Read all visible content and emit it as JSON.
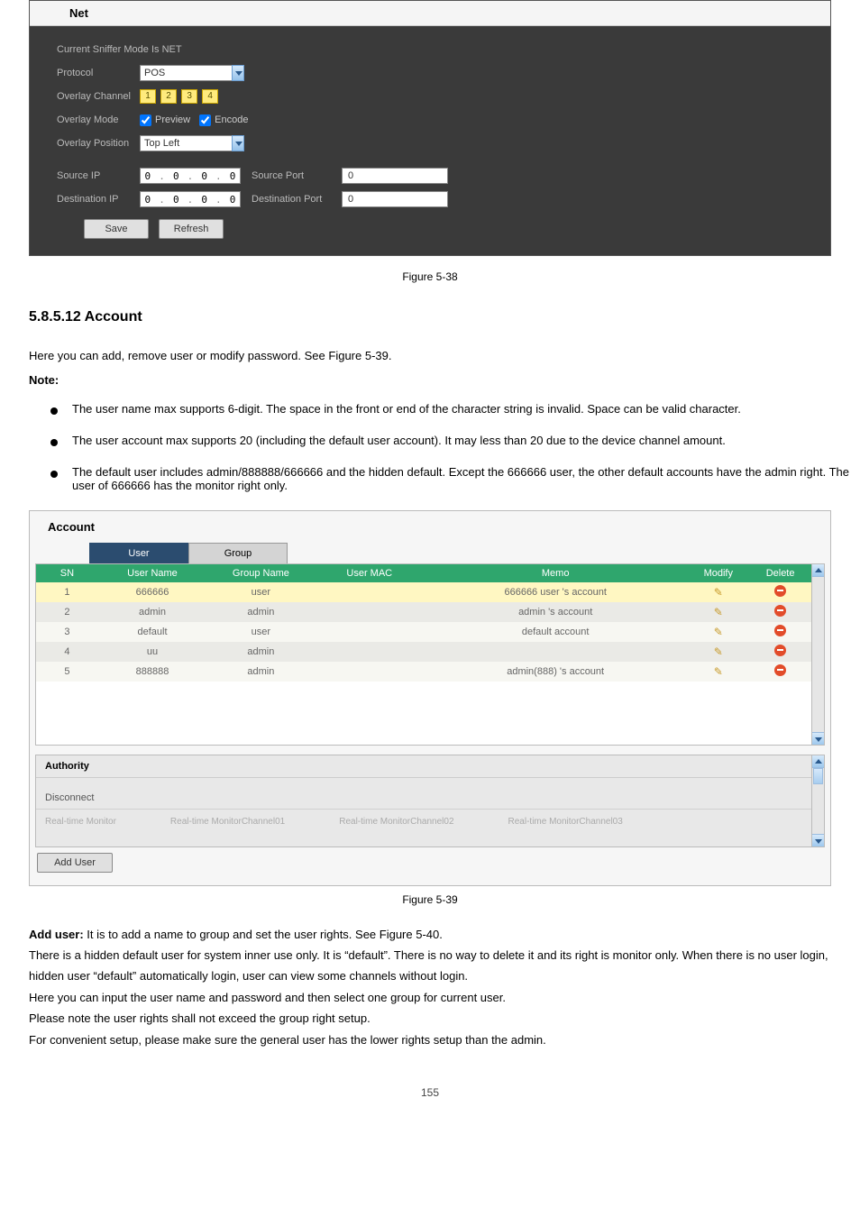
{
  "net": {
    "title": "Net",
    "mode_text": "Current Sniffer Mode Is NET",
    "labels": {
      "protocol": "Protocol",
      "overlay_channel": "Overlay Channel",
      "overlay_mode": "Overlay Mode",
      "overlay_position": "Overlay Position",
      "source_ip": "Source IP",
      "dest_ip": "Destination IP",
      "source_port": "Source Port",
      "dest_port": "Destination Port"
    },
    "protocol_value": "POS",
    "channels": [
      "1",
      "2",
      "3",
      "4"
    ],
    "overlay_preview": "Preview",
    "overlay_encode": "Encode",
    "overlay_position_value": "Top Left",
    "src_ip": [
      "0",
      "0",
      "0",
      "0"
    ],
    "dst_ip": [
      "0",
      "0",
      "0",
      "0"
    ],
    "src_port": "0",
    "dst_port": "0",
    "save": "Save",
    "refresh": "Refresh"
  },
  "caption1": "Figure 5-38",
  "text": {
    "heading": "5.8.5.12 Account",
    "lead": "Here you can add, remove user or modify password. See Figure 5-39.",
    "note_label": "Note:",
    "b1": "The user name max supports 6-digit. The space in the front or end of the character string is invalid. Space can be valid character.",
    "b2": "The user account max supports 20 (including the default user account). It may less than 20 due to the device channel amount.",
    "b3": "The default user includes admin/888888/666666 and the hidden default. Except the 666666 user, the other default accounts have the admin right. The user of 666666 has the monitor right only."
  },
  "account": {
    "title": "Account",
    "tabs": {
      "user": "User",
      "group": "Group"
    },
    "columns": [
      "SN",
      "User Name",
      "Group Name",
      "User MAC",
      "Memo",
      "Modify",
      "Delete"
    ],
    "rows": [
      {
        "sn": "1",
        "user": "666666",
        "group": "user",
        "mac": "",
        "memo": "666666 user 's account"
      },
      {
        "sn": "2",
        "user": "admin",
        "group": "admin",
        "mac": "",
        "memo": "admin 's account"
      },
      {
        "sn": "3",
        "user": "default",
        "group": "user",
        "mac": "",
        "memo": "default account"
      },
      {
        "sn": "4",
        "user": "uu",
        "group": "admin",
        "mac": "",
        "memo": ""
      },
      {
        "sn": "5",
        "user": "888888",
        "group": "admin",
        "mac": "",
        "memo": "admin(888) 's account"
      }
    ],
    "authority": "Authority",
    "auth_item": "Disconnect",
    "auth_sub": [
      "Real-time Monitor",
      "Real-time MonitorChannel01",
      "Real-time MonitorChannel02",
      "Real-time MonitorChannel03"
    ],
    "add_user": "Add User"
  },
  "caption2": "Figure 5-39",
  "footer": {
    "add_user_heading": "Add user:",
    "add_user_text": "It is to add a name to group and set the user rights. See Figure 5-40.",
    "hidden_user_text": "There is a hidden default user for system inner use only. It is “default”. There is no way to delete it and its right is monitor only. When there is no user login, hidden user “default” automatically login, user can view some channels without login.",
    "para2a": "Here you can input the user name and password and then select one group for current user.",
    "para2b": "Please note the user rights shall not exceed the group right setup.",
    "para2c": "For convenient setup, please make sure the general user has the lower rights setup than the admin."
  },
  "page_number": "155"
}
